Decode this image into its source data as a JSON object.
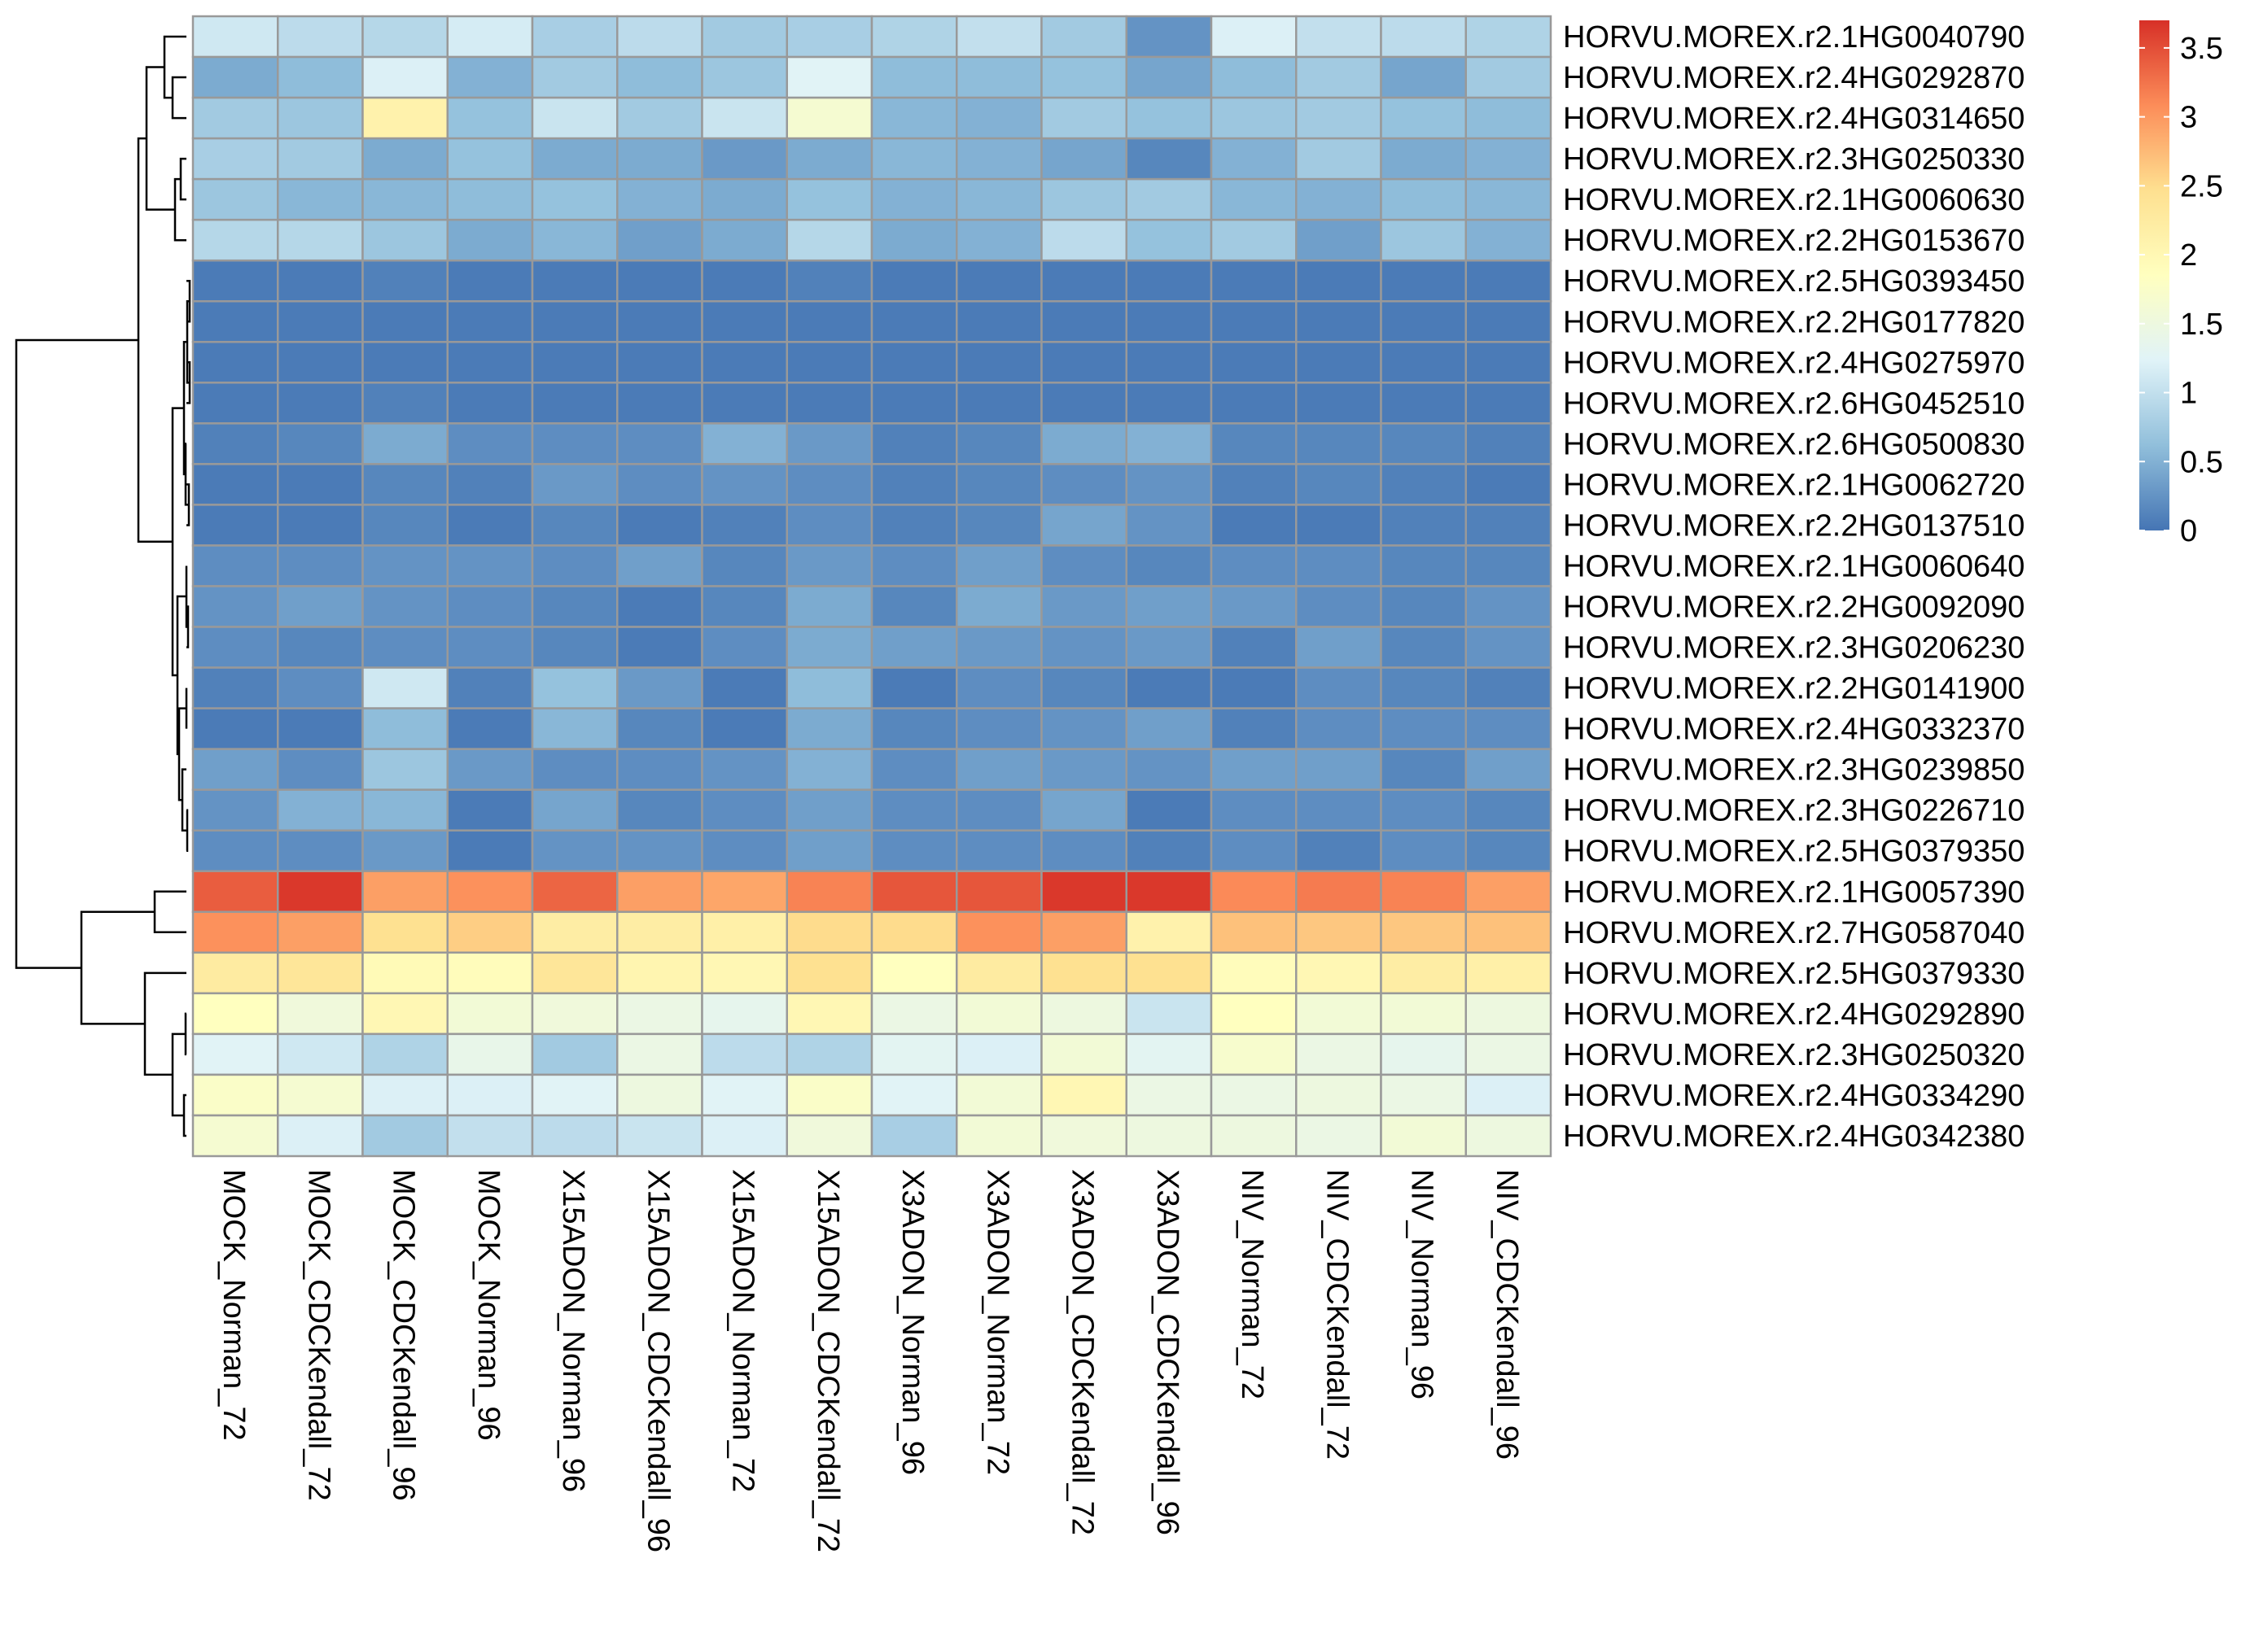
{
  "chart_data": {
    "type": "heatmap",
    "title": "",
    "xlabel": "",
    "ylabel": "",
    "columns": [
      "MOCK_Norman_72",
      "MOCK_CDCKendall_72",
      "MOCK_CDCKendall_96",
      "MOCK_Norman_96",
      "X15ADON_Norman_96",
      "X15ADON_CDCKendall_96",
      "X15ADON_Norman_72",
      "X15ADON_CDCKendall_72",
      "X3ADON_Norman_96",
      "X3ADON_Norman_72",
      "X3ADON_CDCKendall_72",
      "X3ADON_CDCKendall_96",
      "NIV_Norman_72",
      "NIV_CDCKendall_72",
      "NIV_Norman_96",
      "NIV_CDCKendall_96"
    ],
    "rows": [
      "HORVU.MOREX.r2.1HG0040790",
      "HORVU.MOREX.r2.4HG0292870",
      "HORVU.MOREX.r2.4HG0314650",
      "HORVU.MOREX.r2.3HG0250330",
      "HORVU.MOREX.r2.1HG0060630",
      "HORVU.MOREX.r2.2HG0153670",
      "HORVU.MOREX.r2.5HG0393450",
      "HORVU.MOREX.r2.2HG0177820",
      "HORVU.MOREX.r2.4HG0275970",
      "HORVU.MOREX.r2.6HG0452510",
      "HORVU.MOREX.r2.6HG0500830",
      "HORVU.MOREX.r2.1HG0062720",
      "HORVU.MOREX.r2.2HG0137510",
      "HORVU.MOREX.r2.1HG0060640",
      "HORVU.MOREX.r2.2HG0092090",
      "HORVU.MOREX.r2.3HG0206230",
      "HORVU.MOREX.r2.2HG0141900",
      "HORVU.MOREX.r2.4HG0332370",
      "HORVU.MOREX.r2.3HG0239850",
      "HORVU.MOREX.r2.3HG0226710",
      "HORVU.MOREX.r2.5HG0379350",
      "HORVU.MOREX.r2.1HG0057390",
      "HORVU.MOREX.r2.7HG0587040",
      "HORVU.MOREX.r2.5HG0379330",
      "HORVU.MOREX.r2.4HG0292890",
      "HORVU.MOREX.r2.3HG0250320",
      "HORVU.MOREX.r2.4HG0334290",
      "HORVU.MOREX.r2.4HG0342380"
    ],
    "values": [
      [
        1.1,
        0.95,
        0.9,
        1.15,
        0.8,
        0.95,
        0.75,
        0.8,
        0.85,
        1.0,
        0.75,
        0.25,
        1.2,
        1.0,
        0.95,
        0.85
      ],
      [
        0.45,
        0.6,
        1.2,
        0.5,
        0.75,
        0.6,
        0.7,
        1.25,
        0.6,
        0.6,
        0.65,
        0.4,
        0.6,
        0.75,
        0.4,
        0.75
      ],
      [
        0.75,
        0.7,
        2.1,
        0.65,
        1.05,
        0.75,
        1.05,
        1.65,
        0.55,
        0.5,
        0.75,
        0.65,
        0.7,
        0.75,
        0.65,
        0.6
      ],
      [
        0.8,
        0.75,
        0.45,
        0.65,
        0.45,
        0.45,
        0.3,
        0.45,
        0.55,
        0.5,
        0.4,
        0.15,
        0.5,
        0.75,
        0.45,
        0.5
      ],
      [
        0.7,
        0.55,
        0.55,
        0.6,
        0.65,
        0.5,
        0.45,
        0.65,
        0.5,
        0.55,
        0.7,
        0.75,
        0.55,
        0.5,
        0.6,
        0.55
      ],
      [
        0.9,
        0.9,
        0.7,
        0.45,
        0.55,
        0.35,
        0.45,
        0.9,
        0.45,
        0.5,
        0.95,
        0.65,
        0.75,
        0.35,
        0.7,
        0.5
      ],
      [
        0.05,
        0.05,
        0.1,
        0.05,
        0.05,
        0.05,
        0.05,
        0.1,
        0.05,
        0.05,
        0.05,
        0.05,
        0.05,
        0.05,
        0.05,
        0.05
      ],
      [
        0.05,
        0.05,
        0.05,
        0.05,
        0.05,
        0.05,
        0.05,
        0.05,
        0.05,
        0.05,
        0.05,
        0.05,
        0.05,
        0.05,
        0.05,
        0.05
      ],
      [
        0.05,
        0.05,
        0.05,
        0.05,
        0.05,
        0.05,
        0.05,
        0.05,
        0.05,
        0.05,
        0.05,
        0.05,
        0.05,
        0.05,
        0.05,
        0.05
      ],
      [
        0.05,
        0.05,
        0.1,
        0.05,
        0.05,
        0.05,
        0.05,
        0.05,
        0.05,
        0.05,
        0.05,
        0.05,
        0.05,
        0.05,
        0.05,
        0.05
      ],
      [
        0.1,
        0.15,
        0.45,
        0.2,
        0.2,
        0.2,
        0.5,
        0.3,
        0.1,
        0.15,
        0.45,
        0.5,
        0.15,
        0.15,
        0.15,
        0.1
      ],
      [
        0.05,
        0.05,
        0.15,
        0.1,
        0.3,
        0.2,
        0.25,
        0.2,
        0.1,
        0.15,
        0.2,
        0.25,
        0.1,
        0.15,
        0.1,
        0.05
      ],
      [
        0.05,
        0.05,
        0.15,
        0.05,
        0.15,
        0.05,
        0.1,
        0.2,
        0.1,
        0.15,
        0.4,
        0.25,
        0.05,
        0.05,
        0.1,
        0.1
      ],
      [
        0.2,
        0.2,
        0.25,
        0.25,
        0.2,
        0.35,
        0.15,
        0.3,
        0.2,
        0.35,
        0.2,
        0.15,
        0.2,
        0.2,
        0.15,
        0.15
      ],
      [
        0.25,
        0.35,
        0.25,
        0.2,
        0.15,
        0.05,
        0.15,
        0.45,
        0.15,
        0.45,
        0.3,
        0.35,
        0.3,
        0.2,
        0.15,
        0.25
      ],
      [
        0.2,
        0.15,
        0.2,
        0.2,
        0.15,
        0.05,
        0.2,
        0.45,
        0.35,
        0.3,
        0.25,
        0.3,
        0.1,
        0.35,
        0.15,
        0.25
      ],
      [
        0.1,
        0.2,
        1.1,
        0.1,
        0.65,
        0.3,
        0.05,
        0.6,
        0.05,
        0.2,
        0.15,
        0.05,
        0.05,
        0.2,
        0.15,
        0.1
      ],
      [
        0.05,
        0.05,
        0.6,
        0.05,
        0.55,
        0.15,
        0.05,
        0.45,
        0.15,
        0.2,
        0.25,
        0.35,
        0.1,
        0.2,
        0.2,
        0.2
      ],
      [
        0.35,
        0.2,
        0.7,
        0.3,
        0.2,
        0.2,
        0.25,
        0.5,
        0.2,
        0.35,
        0.3,
        0.25,
        0.35,
        0.35,
        0.15,
        0.35
      ],
      [
        0.25,
        0.5,
        0.55,
        0.05,
        0.4,
        0.15,
        0.2,
        0.35,
        0.2,
        0.2,
        0.4,
        0.05,
        0.2,
        0.2,
        0.2,
        0.15
      ],
      [
        0.2,
        0.2,
        0.3,
        0.05,
        0.25,
        0.25,
        0.2,
        0.35,
        0.2,
        0.2,
        0.2,
        0.1,
        0.2,
        0.1,
        0.2,
        0.15
      ],
      [
        3.4,
        3.65,
        2.95,
        3.05,
        3.35,
        2.95,
        2.9,
        3.15,
        3.45,
        3.45,
        3.65,
        3.65,
        3.1,
        3.2,
        3.15,
        2.95
      ],
      [
        3.05,
        2.95,
        2.45,
        2.6,
        2.2,
        2.2,
        2.15,
        2.5,
        2.5,
        3.05,
        2.95,
        2.1,
        2.7,
        2.65,
        2.65,
        2.7
      ],
      [
        2.25,
        2.35,
        1.95,
        1.9,
        2.35,
        2.05,
        2.0,
        2.45,
        1.85,
        2.25,
        2.45,
        2.45,
        1.9,
        2.0,
        2.2,
        2.15
      ],
      [
        1.85,
        1.55,
        2.0,
        1.6,
        1.55,
        1.45,
        1.35,
        2.0,
        1.45,
        1.6,
        1.5,
        1.05,
        1.85,
        1.6,
        1.6,
        1.5
      ],
      [
        1.25,
        1.1,
        0.85,
        1.4,
        0.75,
        1.45,
        0.95,
        0.85,
        1.3,
        1.2,
        1.6,
        1.3,
        1.7,
        1.45,
        1.35,
        1.45
      ],
      [
        1.75,
        1.65,
        1.2,
        1.2,
        1.25,
        1.5,
        1.25,
        1.75,
        1.25,
        1.6,
        2.0,
        1.45,
        1.45,
        1.5,
        1.45,
        1.2
      ],
      [
        1.65,
        1.2,
        0.75,
        1.0,
        0.95,
        1.05,
        1.2,
        1.55,
        0.8,
        1.6,
        1.55,
        1.5,
        1.5,
        1.45,
        1.6,
        1.5
      ]
    ],
    "color_scale": {
      "min": 0,
      "max": 3.7,
      "stops": [
        "#4575B4",
        "#91BFDB",
        "#E0F3F8",
        "#FFFFBF",
        "#FEE090",
        "#FC8D59",
        "#D73027"
      ],
      "ticks": [
        0,
        0.5,
        1,
        1.5,
        2,
        2.5,
        3,
        3.5
      ],
      "tick_labels": [
        "0",
        "0.5",
        "1",
        "1.5",
        "2",
        "2.5",
        "3",
        "3.5"
      ]
    },
    "row_dendrogram": true,
    "cell_border_color": "#999999"
  }
}
